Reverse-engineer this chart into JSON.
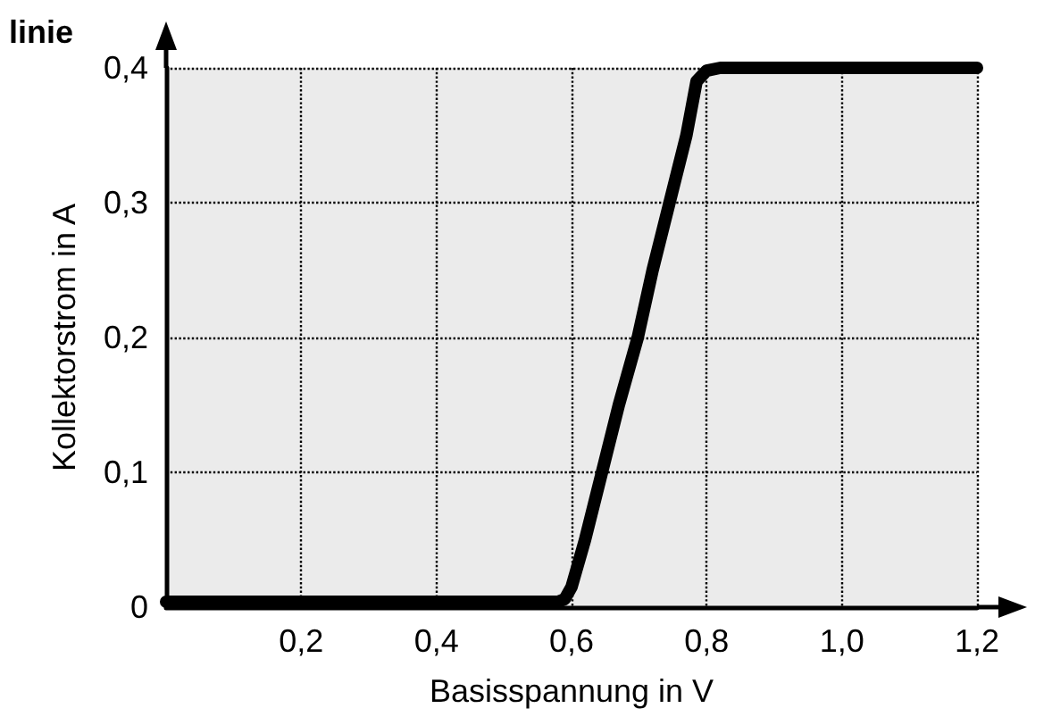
{
  "chart_data": {
    "type": "line",
    "title": "linie",
    "xlabel": "Basisspannung in V",
    "ylabel": "Kollektorstrom in A",
    "x": [
      0,
      0.2,
      0.4,
      0.56,
      0.58,
      0.59,
      0.6,
      0.62,
      0.645,
      0.67,
      0.698,
      0.72,
      0.745,
      0.77,
      0.785,
      0.8,
      0.82,
      0.85,
      1.0,
      1.2
    ],
    "values": [
      0.004,
      0.004,
      0.004,
      0.004,
      0.004,
      0.006,
      0.015,
      0.05,
      0.1,
      0.15,
      0.2,
      0.25,
      0.3,
      0.35,
      0.39,
      0.398,
      0.4,
      0.4,
      0.4,
      0.4
    ],
    "color": "#000000",
    "line_style": "solid",
    "xlim": [
      0,
      1.2
    ],
    "xticks": [
      {
        "value": 0.2,
        "label": "0,2"
      },
      {
        "value": 0.4,
        "label": "0,4"
      },
      {
        "value": 0.6,
        "label": "0,6"
      },
      {
        "value": 0.8,
        "label": "0,8"
      },
      {
        "value": 1.0,
        "label": "1,0"
      },
      {
        "value": 1.2,
        "label": "1,2"
      }
    ],
    "ylim": [
      0,
      0.4
    ],
    "yticks": [
      0,
      {
        "value": 0.1,
        "label": "0,1"
      },
      {
        "value": 0.2,
        "label": "0,2"
      },
      {
        "value": 0.3,
        "label": "0,3"
      },
      {
        "value": 0.4,
        "label": "0,4"
      }
    ],
    "grid": true
  }
}
